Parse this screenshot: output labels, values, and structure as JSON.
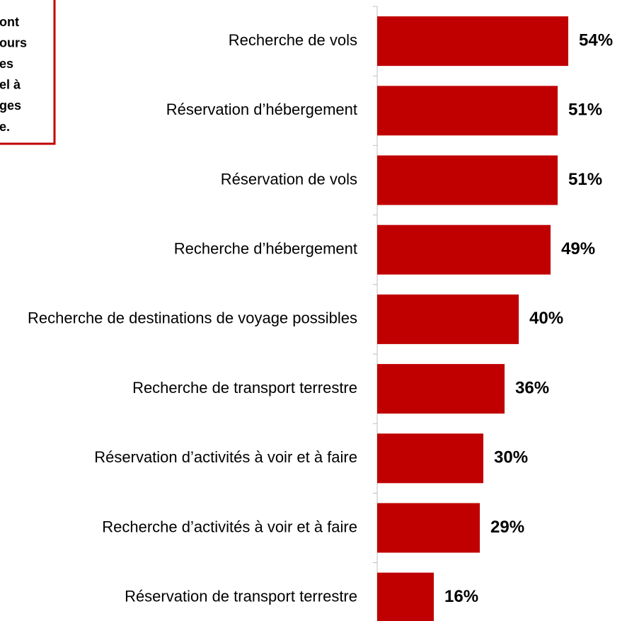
{
  "annotation": [
    "ont",
    "ours",
    "es",
    "el à",
    "ges",
    "e."
  ],
  "chart_data": {
    "type": "barh",
    "categories": [
      "Recherche de vols",
      "Réservation d’hébergement",
      "Réservation de vols",
      "Recherche d’hébergement",
      "Recherche de destinations de voyage possibles",
      "Recherche de transport terrestre",
      "Réservation d’activités à voir et à faire",
      "Recherche d’activités à voir et à faire",
      "Réservation de transport terrestre"
    ],
    "values": [
      54,
      51,
      51,
      49,
      40,
      36,
      30,
      29,
      16
    ],
    "value_labels": [
      "54%",
      "51%",
      "51%",
      "49%",
      "40%",
      "36%",
      "30%",
      "29%",
      "16%"
    ],
    "color": "#c00000",
    "xlim": [
      0,
      70
    ]
  }
}
